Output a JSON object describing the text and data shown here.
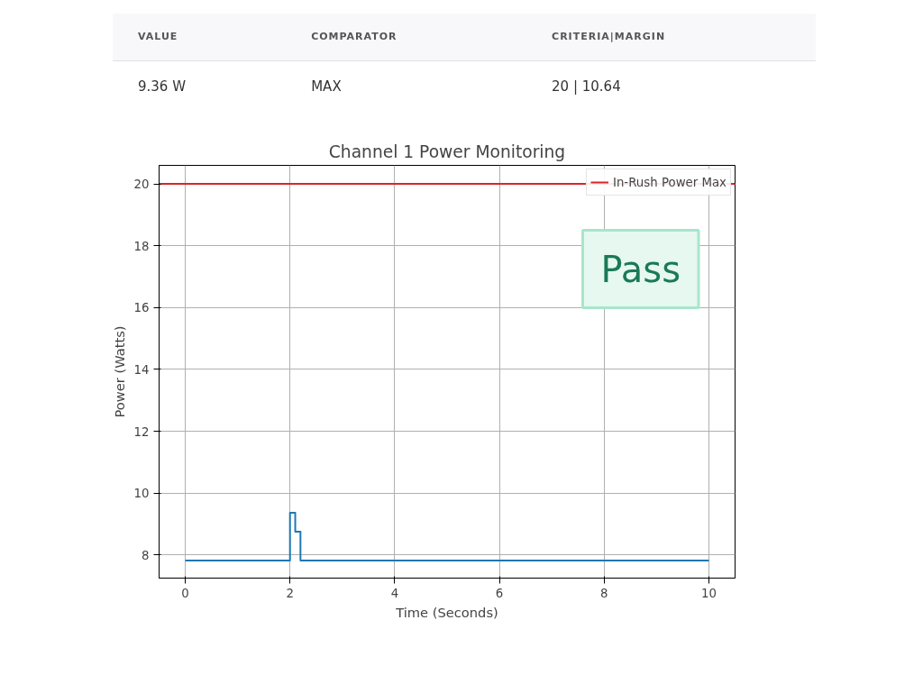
{
  "chart_data": {
    "type": "step",
    "title": "Channel 1 Power Monitoring",
    "xlabel": "Time (Seconds)",
    "ylabel": "Power (Watts)",
    "x": [
      0,
      2,
      2.1,
      2.2,
      10
    ],
    "series": [
      {
        "color": "#1f77b4",
        "values": [
          7.82,
          9.36,
          8.75,
          7.82,
          7.82
        ]
      }
    ],
    "xlim": [
      -0.5,
      10.5
    ],
    "xticks": [
      0,
      2,
      4,
      6,
      8,
      10
    ],
    "ylim": [
      7.25,
      20.6
    ],
    "yticks": [
      8,
      10,
      12,
      14,
      16,
      18,
      20
    ],
    "ref_lines": [
      {
        "axis": "y",
        "value": 20,
        "label": "In-Rush Power Max",
        "color": "#d62728",
        "line_style": "solid"
      }
    ],
    "grid": true,
    "legend": "top right",
    "annotations": [
      "VALUE",
      "COMPARATOR",
      "CRITERIA|MARGIN",
      "9.36 W",
      "MAX",
      "20 | 10.64",
      "Pass"
    ]
  }
}
